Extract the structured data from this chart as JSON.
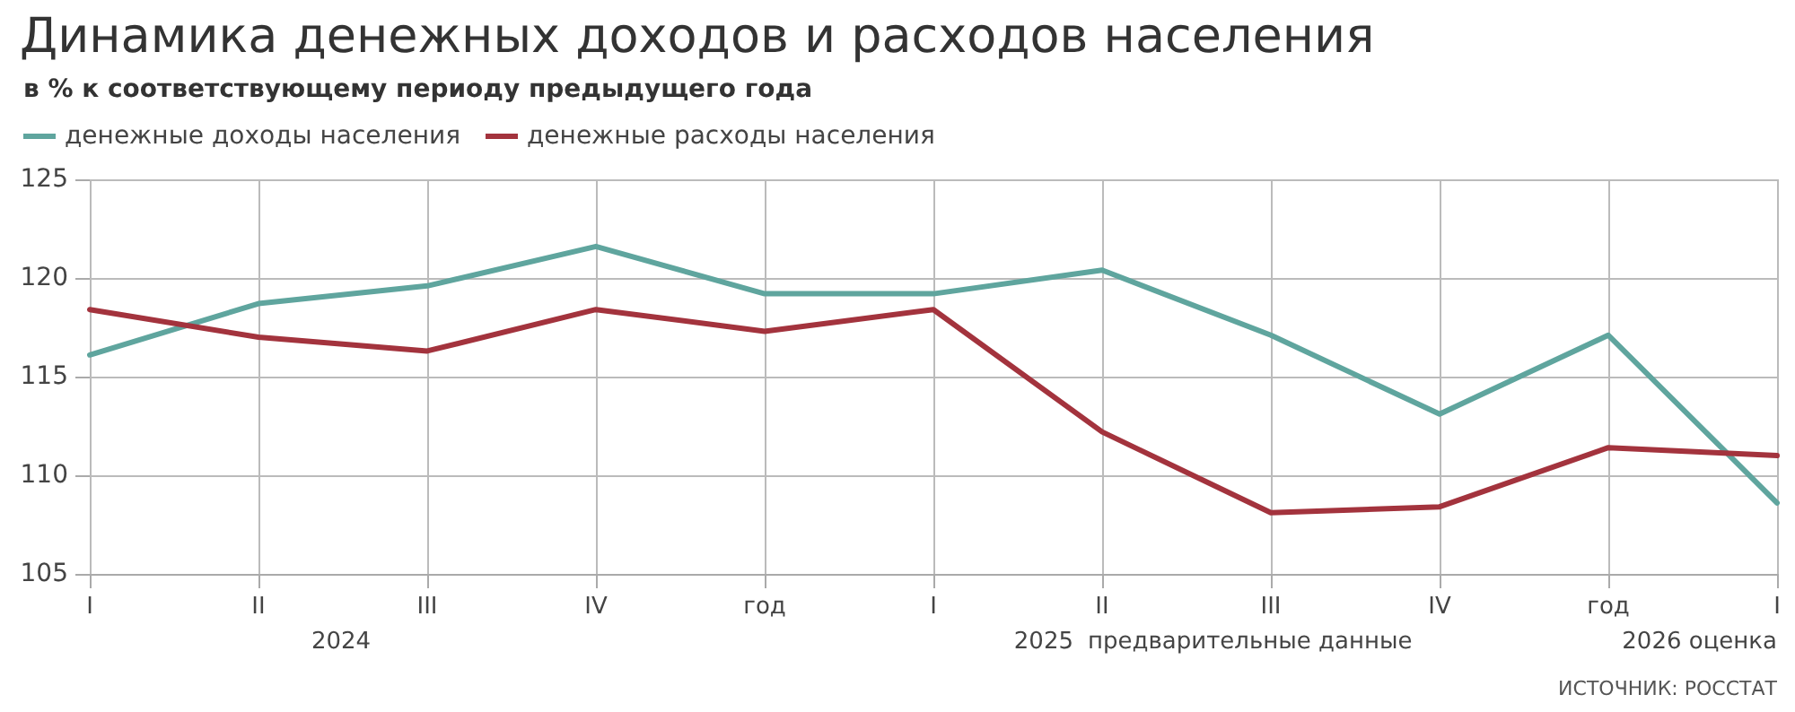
{
  "chart_data": {
    "type": "line",
    "title": "Динамика денежных доходов и расходов населения",
    "subtitle": "в % к соответствующему периоду предыдущего года",
    "categories": [
      "I",
      "II",
      "III",
      "IV",
      "год",
      "I",
      "II",
      "III",
      "IV",
      "год",
      "I"
    ],
    "series": [
      {
        "name": "денежные доходы населения",
        "color": "#5fa59e",
        "values": [
          116.1,
          118.7,
          119.6,
          121.6,
          119.2,
          119.2,
          120.4,
          117.1,
          113.1,
          117.1,
          108.6
        ]
      },
      {
        "name": "денежные расходы населения",
        "color": "#a3333d",
        "values": [
          118.4,
          117.0,
          116.3,
          118.4,
          117.3,
          118.4,
          112.2,
          108.1,
          108.4,
          111.4,
          111.0
        ]
      }
    ],
    "ylim": [
      105,
      125
    ],
    "yticks": [
      105,
      110,
      115,
      120,
      125
    ],
    "grid": true,
    "legend": "top left",
    "marker": "none",
    "line_style": "solid",
    "annotations": [
      "2024",
      "2025",
      "предварительные данные",
      "2026 оценка",
      "ИСТОЧНИК: РОССТАТ"
    ]
  }
}
